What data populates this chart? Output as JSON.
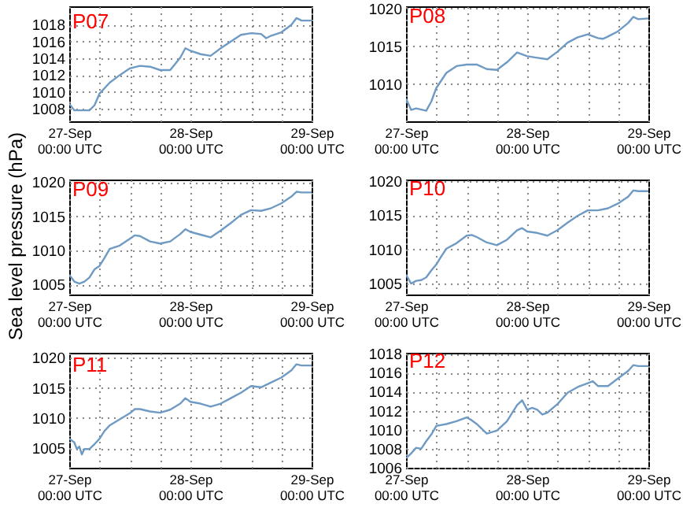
{
  "chart_data": [
    {
      "type": "line",
      "title": "P07",
      "ylim": [
        1006.5,
        1020.2
      ],
      "yticks": [
        1008,
        1010,
        1012,
        1014,
        1016,
        1018
      ],
      "xlim": [
        "--09-27T00:00",
        "--09-29T00:00"
      ],
      "xticks": [
        {
          "value": "--09-27T00:00",
          "label": "27-Sep\n00:00 UTC"
        },
        {
          "value": "--09-27T06:00",
          "label": null
        },
        {
          "value": "--09-27T12:00",
          "label": null
        },
        {
          "value": "--09-27T18:00",
          "label": null
        },
        {
          "value": "--09-28T00:00",
          "label": "28-Sep\n00:00 UTC"
        },
        {
          "value": "--09-28T06:00",
          "label": null
        },
        {
          "value": "--09-28T12:00",
          "label": null
        },
        {
          "value": "--09-28T18:00",
          "label": null
        },
        {
          "value": "--09-29T00:00",
          "label": "29-Sep\n00:00 UTC"
        }
      ],
      "grid": true,
      "x": [
        "--09-27T00:00",
        "--09-27T01:00",
        "--09-27T02:00",
        "--09-27T03:00",
        "--09-27T04:00",
        "--09-27T05:00",
        "--09-27T06:00",
        "--09-27T08:00",
        "--09-27T10:00",
        "--09-27T12:00",
        "--09-27T14:00",
        "--09-27T16:00",
        "--09-27T18:00",
        "--09-27T20:00",
        "--09-27T22:00",
        "--09-27T23:00",
        "--09-28T00:00",
        "--09-28T02:00",
        "--09-28T04:00",
        "--09-28T06:00",
        "--09-28T08:00",
        "--09-28T10:00",
        "--09-28T12:00",
        "--09-28T14:00",
        "--09-28T15:00",
        "--09-28T16:00",
        "--09-28T18:00",
        "--09-28T20:00",
        "--09-28T21:00",
        "--09-28T22:00",
        "--09-29T00:00"
      ],
      "series": [
        {
          "color": "#6f9ac4",
          "values": [
            1008.6,
            1007.8,
            1007.8,
            1007.8,
            1007.8,
            1008.4,
            1009.8,
            1011.1,
            1012,
            1012.8,
            1013.1,
            1013,
            1012.6,
            1012.6,
            1014.1,
            1015.2,
            1014.9,
            1014.5,
            1014.3,
            1015.2,
            1016,
            1016.8,
            1017,
            1016.9,
            1016.4,
            1016.7,
            1017.1,
            1018,
            1018.8,
            1018.5,
            1018.5
          ]
        }
      ]
    },
    {
      "type": "line",
      "title": "P08",
      "ylim": [
        1005.1,
        1020.3
      ],
      "yticks": [
        1010,
        1015,
        1020
      ],
      "xlim": [
        "--09-27T00:00",
        "--09-29T00:00"
      ],
      "xticks": [
        {
          "value": "--09-27T00:00",
          "label": "27-Sep\n00:00 UTC"
        },
        {
          "value": "--09-27T06:00",
          "label": null
        },
        {
          "value": "--09-27T12:00",
          "label": null
        },
        {
          "value": "--09-27T18:00",
          "label": null
        },
        {
          "value": "--09-28T00:00",
          "label": "28-Sep\n00:00 UTC"
        },
        {
          "value": "--09-28T06:00",
          "label": null
        },
        {
          "value": "--09-28T12:00",
          "label": null
        },
        {
          "value": "--09-28T18:00",
          "label": null
        },
        {
          "value": "--09-29T00:00",
          "label": "29-Sep\n00:00 UTC"
        }
      ],
      "grid": true,
      "x": [
        "--09-27T00:00",
        "--09-27T01:00",
        "--09-27T02:00",
        "--09-27T04:00",
        "--09-27T05:00",
        "--09-27T06:00",
        "--09-27T08:00",
        "--09-27T10:00",
        "--09-27T12:00",
        "--09-27T14:00",
        "--09-27T16:00",
        "--09-27T18:00",
        "--09-27T20:00",
        "--09-27T22:00",
        "--09-28T00:00",
        "--09-28T02:00",
        "--09-28T04:00",
        "--09-28T06:00",
        "--09-28T08:00",
        "--09-28T10:00",
        "--09-28T12:00",
        "--09-28T14:00",
        "--09-28T15:00",
        "--09-28T16:00",
        "--09-28T18:00",
        "--09-28T20:00",
        "--09-28T21:00",
        "--09-28T22:00",
        "--09-29T00:00"
      ],
      "series": [
        {
          "color": "#6f9ac4",
          "values": [
            1008.1,
            1006.6,
            1006.8,
            1006.5,
            1007.7,
            1009.5,
            1011.5,
            1012.4,
            1012.6,
            1012.6,
            1012,
            1011.9,
            1012.9,
            1014.2,
            1013.7,
            1013.5,
            1013.3,
            1014.3,
            1015.5,
            1016.2,
            1016.6,
            1016.1,
            1016,
            1016.3,
            1017,
            1018.1,
            1018.9,
            1018.6,
            1018.7
          ]
        }
      ]
    },
    {
      "type": "line",
      "title": "P09",
      "ylabel": "Sea level pressure (hPa)",
      "ylim": [
        1003.5,
        1020.4
      ],
      "yticks": [
        1005,
        1010,
        1015,
        1020
      ],
      "xlim": [
        "--09-27T00:00",
        "--09-29T00:00"
      ],
      "xticks": [
        {
          "value": "--09-27T00:00",
          "label": "27-Sep\n00:00 UTC"
        },
        {
          "value": "--09-27T06:00",
          "label": null
        },
        {
          "value": "--09-27T12:00",
          "label": null
        },
        {
          "value": "--09-27T18:00",
          "label": null
        },
        {
          "value": "--09-28T00:00",
          "label": "28-Sep\n00:00 UTC"
        },
        {
          "value": "--09-28T06:00",
          "label": null
        },
        {
          "value": "--09-28T12:00",
          "label": null
        },
        {
          "value": "--09-28T18:00",
          "label": null
        },
        {
          "value": "--09-29T00:00",
          "label": "29-Sep\n00:00 UTC"
        }
      ],
      "grid": true,
      "x": [
        "--09-27T00:00",
        "--09-27T01:00",
        "--09-27T02:00",
        "--09-27T03:00",
        "--09-27T04:00",
        "--09-27T05:00",
        "--09-27T06:00",
        "--09-27T07:00",
        "--09-27T08:00",
        "--09-27T10:00",
        "--09-27T12:00",
        "--09-27T13:00",
        "--09-27T14:00",
        "--09-27T16:00",
        "--09-27T18:00",
        "--09-27T20:00",
        "--09-27T22:00",
        "--09-27T23:00",
        "--09-28T00:00",
        "--09-28T02:00",
        "--09-28T04:00",
        "--09-28T06:00",
        "--09-28T08:00",
        "--09-28T10:00",
        "--09-28T12:00",
        "--09-28T14:00",
        "--09-28T16:00",
        "--09-28T18:00",
        "--09-28T20:00",
        "--09-28T21:00",
        "--09-28T22:00",
        "--09-29T00:00"
      ],
      "series": [
        {
          "color": "#6f9ac4",
          "values": [
            1006.4,
            1005.4,
            1005.1,
            1005.4,
            1006,
            1007.2,
            1007.7,
            1008.9,
            1010.2,
            1010.7,
            1011.7,
            1012.2,
            1012.1,
            1011.3,
            1011,
            1011.3,
            1012.4,
            1013.1,
            1012.7,
            1012.3,
            1011.9,
            1012.9,
            1014,
            1015.2,
            1015.9,
            1015.8,
            1016.2,
            1016.9,
            1017.9,
            1018.6,
            1018.5,
            1018.5
          ]
        }
      ]
    },
    {
      "type": "line",
      "title": "P10",
      "ylim": [
        1003.4,
        1020.2
      ],
      "yticks": [
        1005,
        1010,
        1015,
        1020
      ],
      "xlim": [
        "--09-27T00:00",
        "--09-29T00:00"
      ],
      "xticks": [
        {
          "value": "--09-27T00:00",
          "label": "27-Sep\n00:00 UTC"
        },
        {
          "value": "--09-27T06:00",
          "label": null
        },
        {
          "value": "--09-27T12:00",
          "label": null
        },
        {
          "value": "--09-27T18:00",
          "label": null
        },
        {
          "value": "--09-28T00:00",
          "label": "28-Sep\n00:00 UTC"
        },
        {
          "value": "--09-28T06:00",
          "label": null
        },
        {
          "value": "--09-28T12:00",
          "label": null
        },
        {
          "value": "--09-28T18:00",
          "label": null
        },
        {
          "value": "--09-29T00:00",
          "label": "29-Sep\n00:00 UTC"
        }
      ],
      "grid": true,
      "x": [
        "--09-27T00:00",
        "--09-27T01:00",
        "--09-27T02:00",
        "--09-27T03:00",
        "--09-27T04:00",
        "--09-27T05:00",
        "--09-27T06:00",
        "--09-27T07:00",
        "--09-27T08:00",
        "--09-27T10:00",
        "--09-27T12:00",
        "--09-27T13:00",
        "--09-27T14:00",
        "--09-27T16:00",
        "--09-27T18:00",
        "--09-27T20:00",
        "--09-27T22:00",
        "--09-27T23:00",
        "--09-28T00:00",
        "--09-28T02:00",
        "--09-28T04:00",
        "--09-28T06:00",
        "--09-28T08:00",
        "--09-28T10:00",
        "--09-28T12:00",
        "--09-28T14:00",
        "--09-28T16:00",
        "--09-28T18:00",
        "--09-28T20:00",
        "--09-28T21:00",
        "--09-28T22:00",
        "--09-29T00:00"
      ],
      "series": [
        {
          "color": "#6f9ac4",
          "values": [
            1006.3,
            1005,
            1005.4,
            1005.5,
            1005.9,
            1006.9,
            1007.8,
            1009,
            1010.1,
            1010.9,
            1012,
            1012.1,
            1011.8,
            1011,
            1010.6,
            1011.4,
            1012.8,
            1013.1,
            1012.6,
            1012.4,
            1012,
            1012.8,
            1013.9,
            1014.9,
            1015.7,
            1015.7,
            1016,
            1016.7,
            1017.7,
            1018.6,
            1018.5,
            1018.5
          ]
        }
      ]
    },
    {
      "type": "line",
      "title": "P11",
      "ylim": [
        1001.8,
        1020.8
      ],
      "yticks": [
        1005,
        1010,
        1015,
        1020
      ],
      "xlim": [
        "--09-27T00:00",
        "--09-29T00:00"
      ],
      "xticks": [
        {
          "value": "--09-27T00:00",
          "label": "27-Sep\n00:00 UTC"
        },
        {
          "value": "--09-27T06:00",
          "label": null
        },
        {
          "value": "--09-27T12:00",
          "label": null
        },
        {
          "value": "--09-27T18:00",
          "label": null
        },
        {
          "value": "--09-28T00:00",
          "label": "28-Sep\n00:00 UTC"
        },
        {
          "value": "--09-28T06:00",
          "label": null
        },
        {
          "value": "--09-28T12:00",
          "label": null
        },
        {
          "value": "--09-28T18:00",
          "label": null
        },
        {
          "value": "--09-29T00:00",
          "label": "29-Sep\n00:00 UTC"
        }
      ],
      "grid": true,
      "x": [
        "--09-27T00:00",
        "--09-27T01:00",
        "--09-27T01:30",
        "--09-27T02:00",
        "--09-27T02:30",
        "--09-27T03:00",
        "--09-27T04:00",
        "--09-27T05:00",
        "--09-27T06:00",
        "--09-27T07:00",
        "--09-27T08:00",
        "--09-27T10:00",
        "--09-27T12:00",
        "--09-27T13:00",
        "--09-27T14:00",
        "--09-27T16:00",
        "--09-27T18:00",
        "--09-27T20:00",
        "--09-27T22:00",
        "--09-27T23:00",
        "--09-28T00:00",
        "--09-28T02:00",
        "--09-28T04:00",
        "--09-28T06:00",
        "--09-28T08:00",
        "--09-28T10:00",
        "--09-28T12:00",
        "--09-28T14:00",
        "--09-28T16:00",
        "--09-28T18:00",
        "--09-28T20:00",
        "--09-28T21:00",
        "--09-28T22:00",
        "--09-29T00:00"
      ],
      "series": [
        {
          "color": "#6f9ac4",
          "values": [
            1006.6,
            1006,
            1004.9,
            1005.3,
            1004,
            1004.9,
            1004.9,
            1005.7,
            1006.6,
            1007.9,
            1008.8,
            1009.8,
            1010.8,
            1011.5,
            1011.5,
            1011.1,
            1010.9,
            1011.4,
            1012.4,
            1013.3,
            1012.7,
            1012.4,
            1011.9,
            1012.4,
            1013.3,
            1014.2,
            1015.3,
            1015.1,
            1015.9,
            1016.7,
            1017.9,
            1018.9,
            1018.7,
            1018.7
          ]
        }
      ]
    },
    {
      "type": "line",
      "title": "P12",
      "ylim": [
        1006,
        1018.1
      ],
      "yticks": [
        1006,
        1008,
        1010,
        1012,
        1014,
        1016,
        1018
      ],
      "xlim": [
        "--09-27T00:00",
        "--09-29T00:00"
      ],
      "xticks": [
        {
          "value": "--09-27T00:00",
          "label": "27-Sep\n00:00 UTC"
        },
        {
          "value": "--09-27T06:00",
          "label": null
        },
        {
          "value": "--09-27T12:00",
          "label": null
        },
        {
          "value": "--09-27T18:00",
          "label": null
        },
        {
          "value": "--09-28T00:00",
          "label": "28-Sep\n00:00 UTC"
        },
        {
          "value": "--09-28T06:00",
          "label": null
        },
        {
          "value": "--09-28T12:00",
          "label": null
        },
        {
          "value": "--09-28T18:00",
          "label": null
        },
        {
          "value": "--09-29T00:00",
          "label": "29-Sep\n00:00 UTC"
        }
      ],
      "grid": true,
      "x": [
        "--09-27T00:00",
        "--09-27T01:00",
        "--09-27T02:00",
        "--09-27T03:00",
        "--09-27T04:00",
        "--09-27T05:00",
        "--09-27T06:00",
        "--09-27T08:00",
        "--09-27T10:00",
        "--09-27T12:00",
        "--09-27T13:00",
        "--09-27T14:00",
        "--09-27T16:00",
        "--09-27T18:00",
        "--09-27T20:00",
        "--09-27T22:00",
        "--09-27T23:00",
        "--09-28T00:00",
        "--09-28T01:00",
        "--09-28T02:00",
        "--09-28T03:00",
        "--09-28T04:00",
        "--09-28T06:00",
        "--09-28T08:00",
        "--09-28T10:00",
        "--09-28T12:00",
        "--09-28T13:00",
        "--09-28T14:00",
        "--09-28T16:00",
        "--09-28T18:00",
        "--09-28T20:00",
        "--09-28T21:00",
        "--09-28T22:00",
        "--09-29T00:00"
      ],
      "series": [
        {
          "color": "#6f9ac4",
          "values": [
            1007,
            1007.5,
            1008.1,
            1008,
            1008.8,
            1009.5,
            1010.4,
            1010.6,
            1010.9,
            1011.3,
            1011,
            1010.6,
            1009.6,
            1009.9,
            1010.9,
            1012.6,
            1013.1,
            1012.1,
            1012.3,
            1012.1,
            1011.6,
            1011.8,
            1012.7,
            1013.9,
            1014.5,
            1014.9,
            1015.1,
            1014.6,
            1014.6,
            1015.4,
            1016.2,
            1016.8,
            1016.7,
            1016.7
          ]
        }
      ]
    }
  ]
}
